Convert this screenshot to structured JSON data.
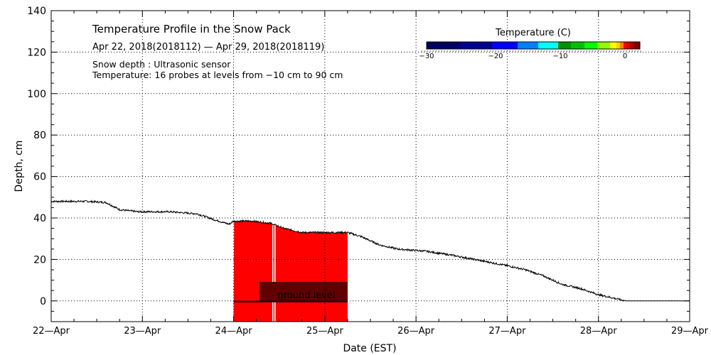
{
  "chart_data": {
    "type": "line",
    "title": "Temperature Profile in the Snow Pack",
    "subtitle": "Apr 22, 2018(2018112) — Apr 29, 2018(2018119)",
    "notes": [
      "Snow depth : Ultrasonic sensor",
      "Temperature: 16 probes at levels from −10 cm to 90 cm"
    ],
    "xlabel": "Date (EST)",
    "ylabel": "Depth, cm",
    "xticks": [
      "22—Apr",
      "23—Apr",
      "24—Apr",
      "25—Apr",
      "26—Apr",
      "27—Apr",
      "28—Apr",
      "29—Apr"
    ],
    "xlim_days": [
      0,
      7
    ],
    "ylim": [
      -10,
      140
    ],
    "yticks": [
      0,
      20,
      40,
      60,
      80,
      100,
      120,
      140
    ],
    "grid": true,
    "series": [
      {
        "name": "Snow depth",
        "x_days": [
          0,
          0.4,
          0.6,
          0.75,
          0.95,
          1.3,
          1.6,
          1.8,
          1.95,
          2.0,
          2.2,
          2.4,
          2.55,
          2.75,
          3.0,
          3.25,
          3.4,
          3.6,
          3.8,
          4.1,
          4.4,
          4.7,
          5.0,
          5.2,
          5.4,
          5.6,
          5.8,
          6.0,
          6.2,
          6.3,
          7.0
        ],
        "depth": [
          48,
          48,
          47.5,
          44,
          43,
          43,
          42,
          39,
          37,
          38.5,
          38.5,
          37.5,
          35,
          33,
          33,
          33,
          31,
          27,
          25,
          24,
          22,
          19.5,
          17,
          15,
          12,
          8,
          6,
          3,
          1,
          0,
          0
        ]
      }
    ],
    "temperature_region": {
      "x_days": [
        2.0,
        3.25
      ],
      "color": "#ff0000"
    },
    "ground_label": "ground level",
    "ground_box_color": "#600000",
    "colorbar": {
      "title": "Temperature (C)",
      "ticks": [
        "−30",
        "−20",
        "−10",
        "0"
      ],
      "colors": [
        "#000060",
        "#000090",
        "#0000ff",
        "#0080ff",
        "#00ffff",
        "#009000",
        "#00c000",
        "#00ff00",
        "#90ff00",
        "#ffff00",
        "#ffd000",
        "#ff8000",
        "#ff0000",
        "#e00000",
        "#b00000",
        "#800000",
        "#600000"
      ]
    }
  }
}
